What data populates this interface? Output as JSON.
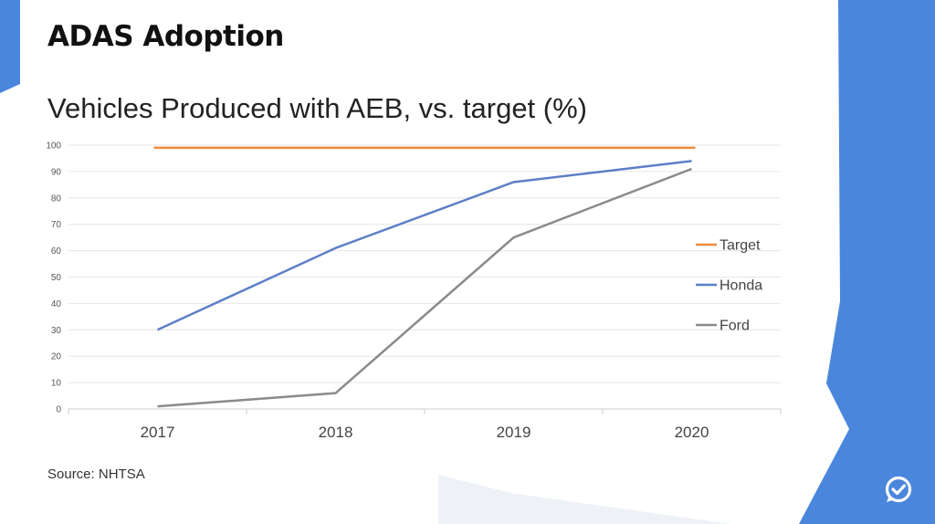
{
  "slide": {
    "title": "ADAS Adoption",
    "source": "Source: NHTSA"
  },
  "chart_data": {
    "type": "line",
    "title": "Vehicles Produced with AEB, vs. target (%)",
    "categories": [
      "2017",
      "2018",
      "2019",
      "2020"
    ],
    "ylim": [
      0,
      100
    ],
    "yticks": [
      0,
      10,
      20,
      30,
      40,
      50,
      60,
      70,
      80,
      90,
      100
    ],
    "grid": true,
    "legend": "right",
    "series": [
      {
        "name": "Target",
        "color": "#ed8b3a",
        "values": [
          99,
          99,
          99,
          99
        ]
      },
      {
        "name": "Honda",
        "color": "#5d7fc7",
        "values": [
          30,
          61,
          86,
          94
        ]
      },
      {
        "name": "Ford",
        "color": "#8a8a8a",
        "values": [
          1,
          6,
          65,
          91
        ]
      }
    ]
  },
  "colors": {
    "brand_blue": "#4a86dc"
  },
  "icons": {
    "logo": "chat-check-logo-icon"
  }
}
